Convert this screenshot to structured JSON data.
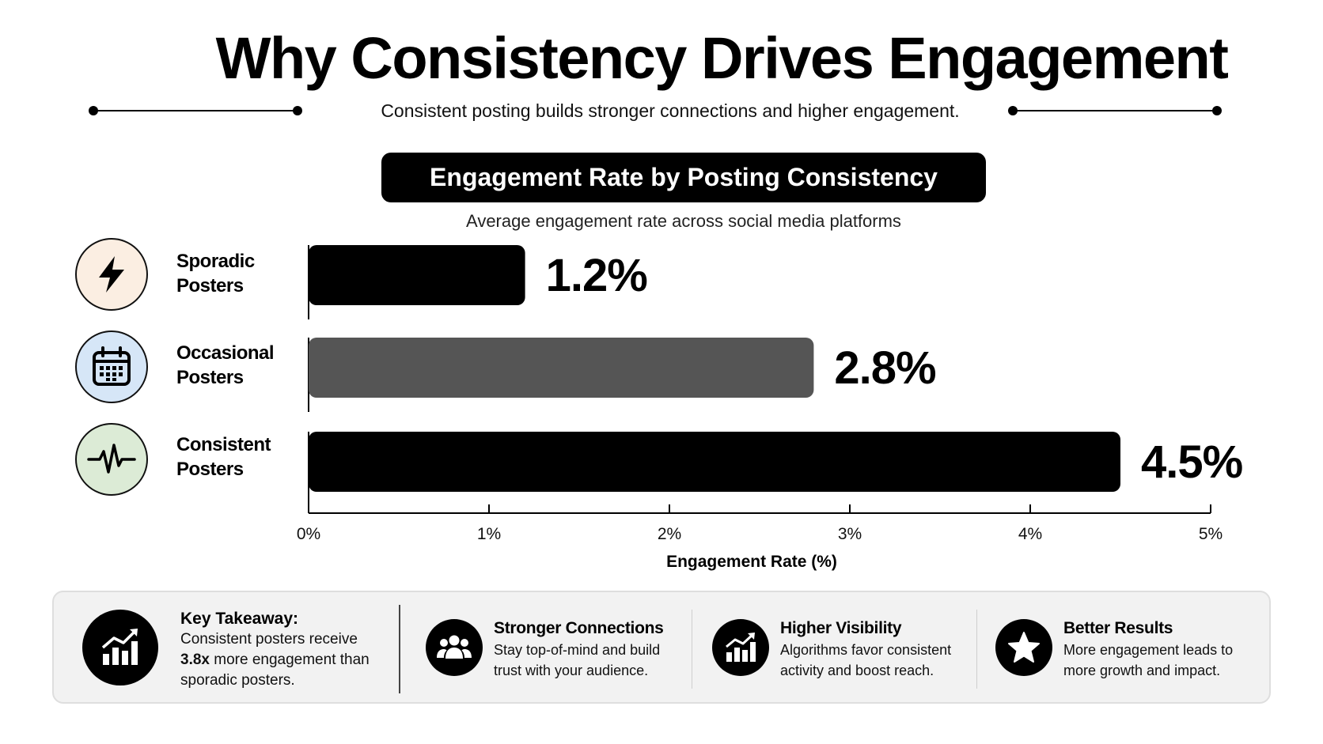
{
  "title": "Why Consistency Drives Engagement",
  "subtitle": "Consistent posting builds stronger connections and higher engagement.",
  "chart_data": {
    "type": "bar",
    "orientation": "horizontal",
    "title": "Engagement Rate by Posting Consistency",
    "subtitle": "Average engagement rate across social media platforms",
    "categories": [
      {
        "line1": "Sporadic",
        "line2": "Posters",
        "icon": "lightning-icon",
        "icon_bg": "#fbeee2"
      },
      {
        "line1": "Occasional",
        "line2": "Posters",
        "icon": "calendar-icon",
        "icon_bg": "#d6e6f7"
      },
      {
        "line1": "Consistent",
        "line2": "Posters",
        "icon": "heartbeat-icon",
        "icon_bg": "#dcebd6"
      }
    ],
    "values": [
      1.2,
      2.8,
      4.5
    ],
    "value_labels": [
      "1.2%",
      "2.8%",
      "4.5%"
    ],
    "bar_colors": [
      "#000000",
      "#555555",
      "#000000"
    ],
    "xlabel": "Engagement Rate (%)",
    "xlim": [
      0,
      5
    ],
    "xticks": [
      "0%",
      "1%",
      "2%",
      "3%",
      "4%",
      "5%"
    ],
    "grid": false
  },
  "bottom_panel": {
    "key_takeaway": {
      "title": "Key Takeaway:",
      "body_before": "Consistent posters receive ",
      "body_bold": "3.8x",
      "body_after": " more engagement than sporadic posters.",
      "icon": "growth-chart-icon"
    },
    "features": [
      {
        "title": "Stronger Connections",
        "body": "Stay top-of-mind and build trust with your audience.",
        "icon": "people-icon"
      },
      {
        "title": "Higher Visibility",
        "body": "Algorithms favor consistent activity and boost reach.",
        "icon": "bar-chart-icon"
      },
      {
        "title": "Better Results",
        "body": "More engagement leads to more growth and impact.",
        "icon": "star-icon"
      }
    ]
  }
}
